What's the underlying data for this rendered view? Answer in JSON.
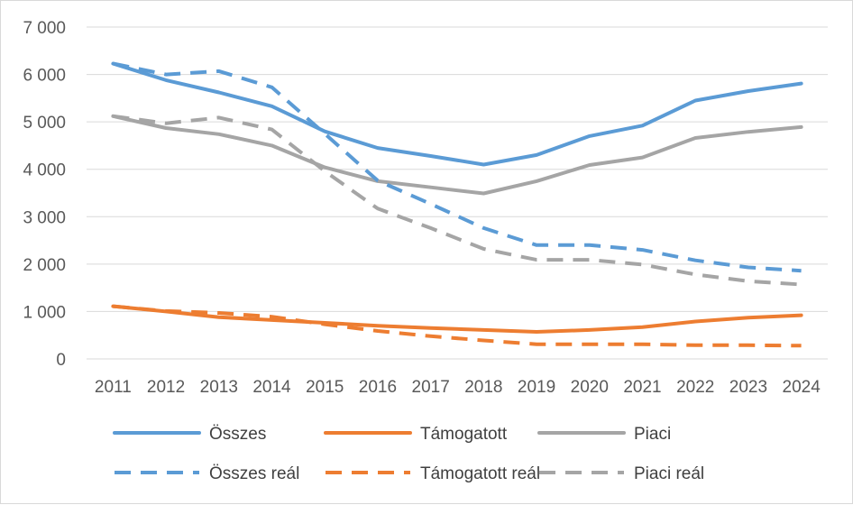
{
  "chart_data": {
    "type": "line",
    "title": "",
    "xlabel": "",
    "ylabel": "",
    "categories": [
      "2011",
      "2012",
      "2013",
      "2014",
      "2015",
      "2016",
      "2017",
      "2018",
      "2019",
      "2020",
      "2021",
      "2022",
      "2023",
      "2024"
    ],
    "ylim": [
      0,
      7000
    ],
    "yticks": [
      0,
      1000,
      2000,
      3000,
      4000,
      5000,
      6000,
      7000
    ],
    "ytick_labels": [
      "0",
      "1 000",
      "2 000",
      "3 000",
      "4 000",
      "5 000",
      "6 000",
      "7 000"
    ],
    "grid": true,
    "legend_position": "bottom",
    "series": [
      {
        "name": "Összes",
        "color": "#5b9bd5",
        "style": "solid",
        "values": [
          6230,
          5880,
          5620,
          5330,
          4800,
          4450,
          4280,
          4100,
          4300,
          4700,
          4920,
          5450,
          5650,
          5810
        ]
      },
      {
        "name": "Támogatott",
        "color": "#ed7d31",
        "style": "solid",
        "values": [
          1110,
          1000,
          880,
          820,
          760,
          700,
          650,
          610,
          570,
          610,
          670,
          790,
          870,
          920
        ]
      },
      {
        "name": "Piaci",
        "color": "#a5a5a5",
        "style": "solid",
        "values": [
          5120,
          4870,
          4740,
          4500,
          4040,
          3750,
          3620,
          3490,
          3750,
          4090,
          4250,
          4660,
          4790,
          4890
        ]
      },
      {
        "name": "Összes reál",
        "color": "#5b9bd5",
        "style": "dashed",
        "values": [
          6230,
          6000,
          6070,
          5730,
          4750,
          3760,
          3270,
          2760,
          2400,
          2400,
          2300,
          2080,
          1930,
          1860
        ]
      },
      {
        "name": "Támogatott reál",
        "color": "#ed7d31",
        "style": "dashed",
        "values": [
          1110,
          1010,
          970,
          890,
          730,
          590,
          480,
          390,
          310,
          310,
          310,
          290,
          290,
          280
        ]
      },
      {
        "name": "Piaci reál",
        "color": "#a5a5a5",
        "style": "dashed",
        "values": [
          5120,
          4970,
          5090,
          4840,
          3960,
          3170,
          2760,
          2320,
          2090,
          2090,
          1990,
          1780,
          1640,
          1570
        ]
      }
    ]
  }
}
